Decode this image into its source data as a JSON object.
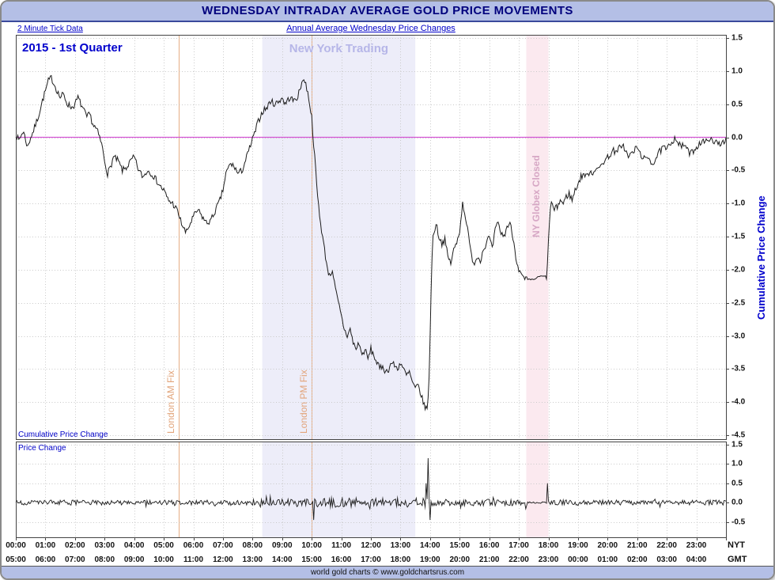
{
  "title": "WEDNESDAY INTRADAY AVERAGE GOLD PRICE MOVEMENTS",
  "header": {
    "tick_note": "2 Minute Tick Data",
    "subtitle": "Annual Average Wednesday Price Changes"
  },
  "footer": {
    "text": "world gold charts © www.goldchartsrus.com"
  },
  "colors": {
    "banner_bg": "#b4bfe6",
    "title_text": "#00007d",
    "blue_text": "#0000c8",
    "series": "#1c1c1c",
    "zero_line": "#d455d4",
    "grid": "#c9c9c9",
    "axis": "#444444",
    "fix_line": "#e6ae84",
    "fix_text": "#e2a47a",
    "ny_trading_band": "#ededf9",
    "ny_trading_text": "#b6b6e8",
    "globex_band": "#fbe9ef",
    "globex_text": "#d6a6c4"
  },
  "chart_data": {
    "type": "line",
    "title": "WEDNESDAY INTRADAY AVERAGE GOLD PRICE MOVEMENTS",
    "subtitle": "Annual Average Wednesday Price Changes",
    "resolution_note": "2 Minute Tick Data",
    "series_label": "2015 - 1st Quarter",
    "x_axis": {
      "xlim": [
        0,
        24
      ],
      "rows": [
        {
          "name": "NYT",
          "labels": [
            "00:00",
            "01:00",
            "02:00",
            "03:00",
            "04:00",
            "05:00",
            "06:00",
            "07:00",
            "08:00",
            "09:00",
            "10:00",
            "11:00",
            "12:00",
            "13:00",
            "14:00",
            "15:00",
            "16:00",
            "17:00",
            "18:00",
            "19:00",
            "20:00",
            "21:00",
            "22:00",
            "23:00"
          ]
        },
        {
          "name": "GMT",
          "labels": [
            "05:00",
            "06:00",
            "07:00",
            "08:00",
            "09:00",
            "10:00",
            "11:00",
            "12:00",
            "13:00",
            "14:00",
            "15:00",
            "16:00",
            "17:00",
            "18:00",
            "19:00",
            "20:00",
            "21:00",
            "22:00",
            "23:00",
            "00:00",
            "01:00",
            "02:00",
            "03:00",
            "04:00"
          ]
        }
      ]
    },
    "annotations": {
      "vlines": [
        {
          "label": "London AM Fix",
          "x": 5.5
        },
        {
          "label": "London PM Fix",
          "x": 10.0
        }
      ],
      "bands": [
        {
          "label": "New York Trading",
          "x0": 8.33,
          "x1": 13.5
        },
        {
          "label": "NY Globex Closed",
          "x0": 17.25,
          "x1": 18.0
        }
      ]
    },
    "panels": [
      {
        "name": "cumulative",
        "label": "Cumulative Price Change",
        "ylabel": "Cumulative Price Change",
        "ylim": [
          -4.5,
          1.5
        ],
        "zero_line": 0.0,
        "yticks": [
          "1.5",
          "1.0",
          "0.5",
          "0.0",
          "-0.5",
          "-1.0",
          "-1.5",
          "-2.0",
          "-2.5",
          "-3.0",
          "-3.5",
          "-4.0",
          "-4.5"
        ],
        "keypoints": [
          [
            0,
            0.05
          ],
          [
            0.1,
            -0.05
          ],
          [
            0.25,
            0.1
          ],
          [
            0.4,
            -0.15
          ],
          [
            0.5,
            0
          ],
          [
            0.6,
            0.1
          ],
          [
            0.75,
            0.3
          ],
          [
            0.9,
            0.55
          ],
          [
            1,
            0.7
          ],
          [
            1.1,
            0.85
          ],
          [
            1.2,
            0.9
          ],
          [
            1.35,
            0.75
          ],
          [
            1.5,
            0.6
          ],
          [
            1.6,
            0.65
          ],
          [
            1.75,
            0.5
          ],
          [
            1.9,
            0.45
          ],
          [
            2,
            0.5
          ],
          [
            2.1,
            0.6
          ],
          [
            2.25,
            0.45
          ],
          [
            2.4,
            0.3
          ],
          [
            2.5,
            0.35
          ],
          [
            2.6,
            0.2
          ],
          [
            2.75,
            0.1
          ],
          [
            2.9,
            -0.1
          ],
          [
            3,
            -0.35
          ],
          [
            3.1,
            -0.55
          ],
          [
            3.2,
            -0.45
          ],
          [
            3.3,
            -0.3
          ],
          [
            3.45,
            -0.35
          ],
          [
            3.6,
            -0.5
          ],
          [
            3.75,
            -0.45
          ],
          [
            3.9,
            -0.35
          ],
          [
            4,
            -0.3
          ],
          [
            4.15,
            -0.5
          ],
          [
            4.3,
            -0.6
          ],
          [
            4.45,
            -0.5
          ],
          [
            4.6,
            -0.55
          ],
          [
            4.75,
            -0.65
          ],
          [
            4.9,
            -0.75
          ],
          [
            5,
            -0.8
          ],
          [
            5.15,
            -0.95
          ],
          [
            5.3,
            -1
          ],
          [
            5.45,
            -1.1
          ],
          [
            5.6,
            -1.3
          ],
          [
            5.75,
            -1.45
          ],
          [
            5.9,
            -1.3
          ],
          [
            6,
            -1.2
          ],
          [
            6.15,
            -1.1
          ],
          [
            6.3,
            -1.2
          ],
          [
            6.45,
            -1.3
          ],
          [
            6.6,
            -1.25
          ],
          [
            6.75,
            -1.1
          ],
          [
            6.9,
            -0.95
          ],
          [
            7,
            -0.8
          ],
          [
            7.1,
            -0.55
          ],
          [
            7.25,
            -0.4
          ],
          [
            7.4,
            -0.45
          ],
          [
            7.5,
            -0.55
          ],
          [
            7.65,
            -0.5
          ],
          [
            7.8,
            -0.3
          ],
          [
            7.95,
            -0.1
          ],
          [
            8.1,
            0.1
          ],
          [
            8.2,
            0.25
          ],
          [
            8.35,
            0.4
          ],
          [
            8.5,
            0.45
          ],
          [
            8.6,
            0.55
          ],
          [
            8.75,
            0.5
          ],
          [
            8.9,
            0.55
          ],
          [
            9,
            0.6
          ],
          [
            9.1,
            0.5
          ],
          [
            9.25,
            0.6
          ],
          [
            9.4,
            0.55
          ],
          [
            9.5,
            0.6
          ],
          [
            9.6,
            0.7
          ],
          [
            9.7,
            0.9
          ],
          [
            9.8,
            0.8
          ],
          [
            9.9,
            0.6
          ],
          [
            10,
            0.3
          ],
          [
            10.05,
            0
          ],
          [
            10.1,
            -0.3
          ],
          [
            10.2,
            -0.9
          ],
          [
            10.3,
            -1.3
          ],
          [
            10.4,
            -1.6
          ],
          [
            10.5,
            -1.9
          ],
          [
            10.6,
            -2.1
          ],
          [
            10.7,
            -2
          ],
          [
            10.8,
            -2.3
          ],
          [
            10.9,
            -2.5
          ],
          [
            11,
            -2.7
          ],
          [
            11.1,
            -2.9
          ],
          [
            11.2,
            -3
          ],
          [
            11.3,
            -2.9
          ],
          [
            11.4,
            -3.1
          ],
          [
            11.5,
            -3.2
          ],
          [
            11.6,
            -3.1
          ],
          [
            11.7,
            -3.3
          ],
          [
            11.8,
            -3.2
          ],
          [
            11.9,
            -3.35
          ],
          [
            12,
            -3.2
          ],
          [
            12.1,
            -3.3
          ],
          [
            12.2,
            -3.4
          ],
          [
            12.3,
            -3.5
          ],
          [
            12.4,
            -3.45
          ],
          [
            12.5,
            -3.55
          ],
          [
            12.6,
            -3.5
          ],
          [
            12.7,
            -3.4
          ],
          [
            12.8,
            -3.45
          ],
          [
            12.9,
            -3.5
          ],
          [
            13,
            -3.4
          ],
          [
            13.1,
            -3.5
          ],
          [
            13.2,
            -3.6
          ],
          [
            13.3,
            -3.55
          ],
          [
            13.4,
            -3.7
          ],
          [
            13.5,
            -3.8
          ],
          [
            13.6,
            -3.75
          ],
          [
            13.7,
            -3.9
          ],
          [
            13.8,
            -4.05
          ],
          [
            13.9,
            -4.1
          ],
          [
            13.95,
            -3.9
          ],
          [
            14,
            -3
          ],
          [
            14.05,
            -2
          ],
          [
            14.1,
            -1.5
          ],
          [
            14.2,
            -1.3
          ],
          [
            14.3,
            -1.5
          ],
          [
            14.4,
            -1.6
          ],
          [
            14.5,
            -1.55
          ],
          [
            14.6,
            -1.8
          ],
          [
            14.7,
            -1.9
          ],
          [
            14.8,
            -1.7
          ],
          [
            14.9,
            -1.6
          ],
          [
            15,
            -1.4
          ],
          [
            15.1,
            -1
          ],
          [
            15.2,
            -1.2
          ],
          [
            15.3,
            -1.5
          ],
          [
            15.4,
            -1.8
          ],
          [
            15.5,
            -1.9
          ],
          [
            15.6,
            -1.8
          ],
          [
            15.7,
            -1.85
          ],
          [
            15.8,
            -1.7
          ],
          [
            15.9,
            -1.6
          ],
          [
            16,
            -1.5
          ],
          [
            16.1,
            -1.7
          ],
          [
            16.2,
            -1.4
          ],
          [
            16.3,
            -1.3
          ],
          [
            16.4,
            -1.45
          ],
          [
            16.5,
            -1.5
          ],
          [
            16.6,
            -1.35
          ],
          [
            16.7,
            -1.3
          ],
          [
            16.8,
            -1.5
          ],
          [
            16.9,
            -1.8
          ],
          [
            17,
            -2
          ],
          [
            17.1,
            -2.1
          ],
          [
            17.2,
            -2.15
          ],
          [
            17.3,
            -2.15
          ],
          [
            17.5,
            -2.15
          ],
          [
            17.7,
            -2.1
          ],
          [
            17.9,
            -2.1
          ],
          [
            17.95,
            -2.1
          ],
          [
            18,
            -1.6
          ],
          [
            18.05,
            -1.1
          ],
          [
            18.1,
            -1
          ],
          [
            18.2,
            -1.1
          ],
          [
            18.3,
            -1.05
          ],
          [
            18.4,
            -0.95
          ],
          [
            18.5,
            -1
          ],
          [
            18.6,
            -0.9
          ],
          [
            18.7,
            -0.85
          ],
          [
            18.8,
            -0.95
          ],
          [
            18.9,
            -0.8
          ],
          [
            19,
            -0.7
          ],
          [
            19.1,
            -0.6
          ],
          [
            19.2,
            -0.55
          ],
          [
            19.3,
            -0.6
          ],
          [
            19.4,
            -0.5
          ],
          [
            19.5,
            -0.55
          ],
          [
            19.6,
            -0.45
          ],
          [
            19.7,
            -0.5
          ],
          [
            19.8,
            -0.4
          ],
          [
            19.9,
            -0.35
          ],
          [
            20,
            -0.3
          ],
          [
            20.1,
            -0.25
          ],
          [
            20.2,
            -0.2
          ],
          [
            20.3,
            -0.25
          ],
          [
            20.4,
            -0.15
          ],
          [
            20.5,
            -0.1
          ],
          [
            20.6,
            -0.2
          ],
          [
            20.7,
            -0.3
          ],
          [
            20.8,
            -0.25
          ],
          [
            20.9,
            -0.2
          ],
          [
            21,
            -0.15
          ],
          [
            21.1,
            -0.25
          ],
          [
            21.2,
            -0.3
          ],
          [
            21.3,
            -0.35
          ],
          [
            21.4,
            -0.3
          ],
          [
            21.5,
            -0.4
          ],
          [
            21.6,
            -0.35
          ],
          [
            21.7,
            -0.25
          ],
          [
            21.8,
            -0.2
          ],
          [
            21.9,
            -0.15
          ],
          [
            22,
            -0.2
          ],
          [
            22.1,
            -0.1
          ],
          [
            22.2,
            -0.05
          ],
          [
            22.3,
            0
          ],
          [
            22.4,
            -0.1
          ],
          [
            22.5,
            -0.15
          ],
          [
            22.6,
            -0.1
          ],
          [
            22.7,
            -0.2
          ],
          [
            22.8,
            -0.25
          ],
          [
            22.9,
            -0.2
          ],
          [
            23,
            -0.15
          ],
          [
            23.1,
            -0.1
          ],
          [
            23.2,
            -0.05
          ],
          [
            23.3,
            -0.1
          ],
          [
            23.4,
            0
          ],
          [
            23.5,
            -0.05
          ],
          [
            23.6,
            -0.1
          ],
          [
            23.7,
            -0.05
          ],
          [
            23.8,
            -0.1
          ],
          [
            23.9,
            -0.05
          ],
          [
            24,
            -0.05
          ]
        ]
      },
      {
        "name": "price_change",
        "label": "Price Change",
        "ylim": [
          -0.9,
          1.5
        ],
        "yticks": [
          "1.5",
          "1.0",
          "0.5",
          "0.0",
          "-0.5"
        ],
        "noise": {
          "base_amplitude": 0.065,
          "regions": [
            {
              "x0": 8,
              "x1": 10,
              "amplitude": 0.09
            },
            {
              "x0": 10,
              "x1": 14,
              "amplitude": 0.12
            },
            {
              "x0": 14,
              "x1": 17.3,
              "amplitude": 0.085
            },
            {
              "x0": 17.3,
              "x1": 17.95,
              "amplitude": 0.02
            },
            {
              "x0": 17.95,
              "x1": 19,
              "amplitude": 0.07
            }
          ],
          "spikes": [
            [
              13.93,
              1.15
            ],
            [
              13.87,
              0.5
            ],
            [
              14.0,
              -0.45
            ],
            [
              10.07,
              -0.45
            ],
            [
              17.98,
              0.5
            ]
          ]
        }
      }
    ]
  }
}
